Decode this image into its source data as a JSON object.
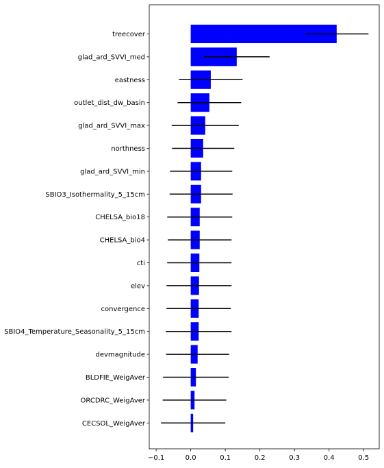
{
  "chart_data": {
    "type": "bar",
    "orientation": "horizontal",
    "title": "",
    "xlabel": "",
    "ylabel": "",
    "xlim": [
      -0.12,
      0.545
    ],
    "xticks": [
      -0.1,
      0.0,
      0.1,
      0.2,
      0.3,
      0.4,
      0.5
    ],
    "xtick_labels": [
      "−0.1",
      "0.0",
      "0.1",
      "0.2",
      "0.3",
      "0.4",
      "0.5"
    ],
    "grid": false,
    "bar_color": "#0000ff",
    "error_color": "#000000",
    "categories": [
      "treecover",
      "glad_ard_SVVI_med",
      "eastness",
      "outlet_dist_dw_basin",
      "glad_ard_SVVI_max",
      "northness",
      "glad_ard_SVVI_min",
      "SBIO3_Isothermality_5_15cm",
      "CHELSA_bio18",
      "CHELSA_bio4",
      "cti",
      "elev",
      "convergence",
      "SBIO4_Temperature_Seasonality_5_15cm",
      "devmagnitude",
      "BLDFIE_WeigAver",
      "ORCDRC_WeigAver",
      "CECSOL_WeigAver"
    ],
    "values": [
      0.422,
      0.133,
      0.058,
      0.054,
      0.042,
      0.036,
      0.03,
      0.03,
      0.026,
      0.026,
      0.025,
      0.024,
      0.023,
      0.023,
      0.02,
      0.015,
      0.011,
      0.007
    ],
    "errors": [
      0.092,
      0.095,
      0.092,
      0.092,
      0.097,
      0.09,
      0.09,
      0.091,
      0.094,
      0.092,
      0.093,
      0.094,
      0.093,
      0.095,
      0.091,
      0.095,
      0.092,
      0.093
    ]
  }
}
